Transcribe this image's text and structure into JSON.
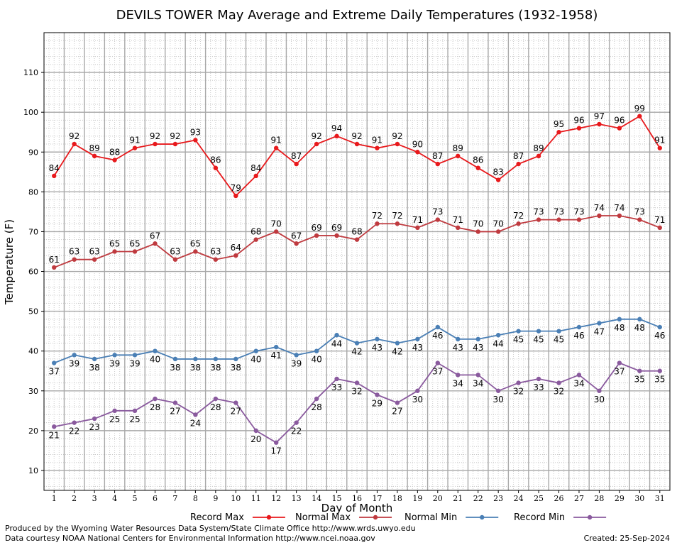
{
  "chart_data": {
    "type": "line",
    "title": "DEVILS TOWER May Average and Extreme Daily Temperatures (1932-1958)",
    "xlabel": "Day of Month",
    "ylabel": "Temperature (F)",
    "x": [
      1,
      2,
      3,
      4,
      5,
      6,
      7,
      8,
      9,
      10,
      11,
      12,
      13,
      14,
      15,
      16,
      17,
      18,
      19,
      20,
      21,
      22,
      23,
      24,
      25,
      26,
      27,
      28,
      29,
      30,
      31
    ],
    "xlim": [
      0.5,
      31.5
    ],
    "ylim": [
      5,
      120
    ],
    "yticks": [
      10,
      20,
      30,
      40,
      50,
      60,
      70,
      80,
      90,
      100,
      110
    ],
    "grid": true,
    "legend_position": "bottom",
    "series": [
      {
        "name": "Record Max",
        "color": "#e8191c",
        "values": [
          84,
          92,
          89,
          88,
          91,
          92,
          92,
          93,
          86,
          79,
          84,
          91,
          87,
          92,
          94,
          92,
          91,
          92,
          90,
          87,
          89,
          86,
          83,
          87,
          89,
          95,
          96,
          97,
          96,
          99,
          91
        ]
      },
      {
        "name": "Normal Max",
        "color": "#bf3a3f",
        "values": [
          61,
          63,
          63,
          65,
          65,
          67,
          63,
          65,
          63,
          64,
          68,
          70,
          67,
          69,
          69,
          68,
          72,
          72,
          71,
          73,
          71,
          70,
          70,
          72,
          73,
          73,
          73,
          74,
          74,
          73,
          71
        ]
      },
      {
        "name": "Normal Min",
        "color": "#4a7fb5",
        "values": [
          37,
          39,
          38,
          39,
          39,
          40,
          38,
          38,
          38,
          38,
          40,
          41,
          39,
          40,
          44,
          42,
          43,
          42,
          43,
          46,
          43,
          43,
          44,
          45,
          45,
          45,
          46,
          47,
          48,
          48,
          46
        ]
      },
      {
        "name": "Record Min",
        "color": "#8a5a9e",
        "values": [
          21,
          22,
          23,
          25,
          25,
          28,
          27,
          24,
          28,
          27,
          20,
          17,
          22,
          28,
          33,
          32,
          29,
          27,
          30,
          37,
          34,
          34,
          30,
          32,
          33,
          32,
          34,
          30,
          37,
          35,
          35
        ]
      }
    ]
  },
  "footer": {
    "produced_by": "Produced by the Wyoming Water Resources Data System/State Climate Office http://www.wrds.uwyo.edu",
    "data_courtesy": "Data courtesy NOAA National Centers for Environmental Information http://www.ncei.noaa.gov",
    "created": "Created:  25-Sep-2024"
  }
}
